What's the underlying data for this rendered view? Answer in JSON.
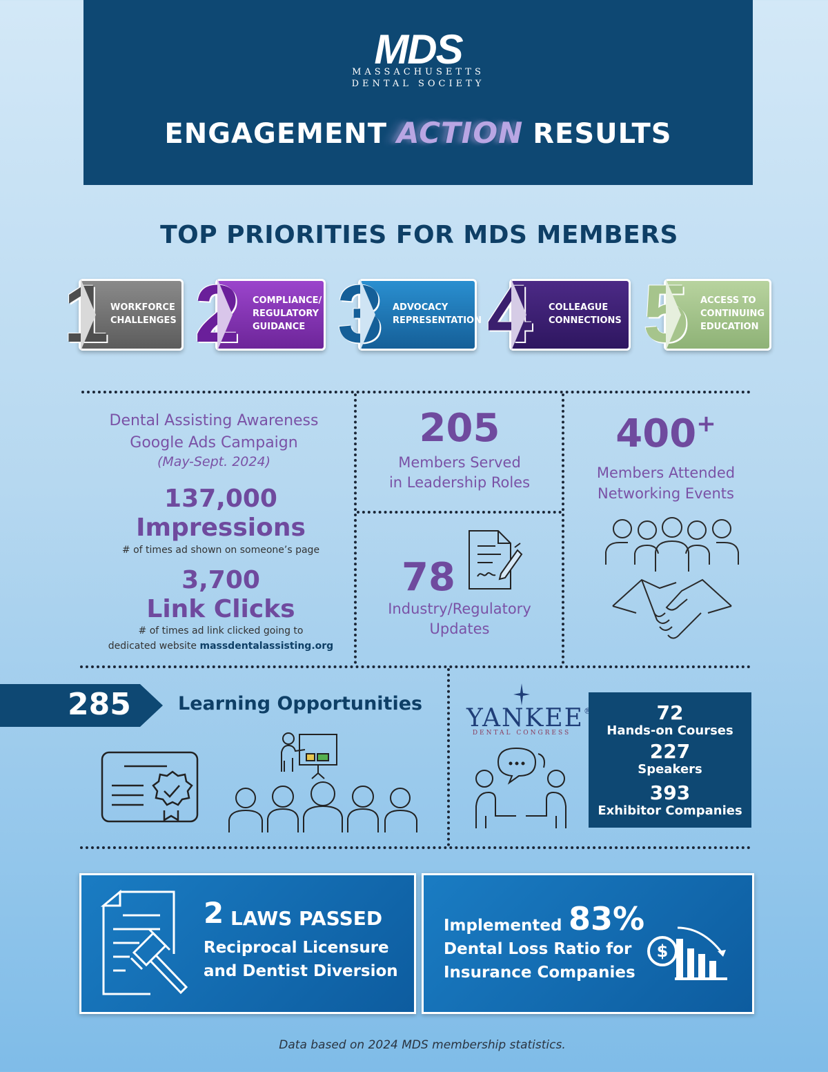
{
  "header": {
    "logo_mark": "MDS",
    "logo_line1": "MASSACHUSETTS",
    "logo_line2": "DENTAL SOCIETY",
    "headline_left": "ENGAGEMENT",
    "headline_mid": "ACTION",
    "headline_right": "RESULTS"
  },
  "priorities": {
    "title": "TOP PRIORITIES FOR MDS MEMBERS",
    "items": [
      {
        "num": "1",
        "lines": [
          "WORKFORCE",
          "CHALLENGES"
        ],
        "color": "#6b6b6b"
      },
      {
        "num": "2",
        "lines": [
          "COMPLIANCE/",
          "REGULATORY",
          "GUIDANCE"
        ],
        "color": "#7a2fae"
      },
      {
        "num": "3",
        "lines": [
          "ADVOCACY",
          "REPRESENTATION"
        ],
        "color": "#1c6ea8"
      },
      {
        "num": "4",
        "lines": [
          "COLLEAGUE",
          "CONNECTIONS"
        ],
        "color": "#3b1f6e"
      },
      {
        "num": "5",
        "lines": [
          "ACCESS TO",
          "CONTINUING",
          "EDUCATION"
        ],
        "color": "#a6c48c"
      }
    ]
  },
  "ads": {
    "title_line1": "Dental Assisting Awareness",
    "title_line2": "Google Ads Campaign",
    "period": "(May-Sept. 2024)",
    "impressions_value": "137,000",
    "impressions_label": "Impressions",
    "impressions_note": "# of times ad shown on someone’s page",
    "clicks_value": "3,700",
    "clicks_label": "Link Clicks",
    "clicks_note1": "# of times ad link clicked going to",
    "clicks_note2_prefix": "dedicated website ",
    "clicks_note2_site": "massdentalassisting.org"
  },
  "leadership": {
    "value": "205",
    "line1": "Members Served",
    "line2": "in Leadership Roles"
  },
  "updates": {
    "value": "78",
    "line1": "Industry/Regulatory",
    "line2": "Updates"
  },
  "networking": {
    "value": "400",
    "suffix": "+",
    "line1": "Members Attended",
    "line2": "Networking Events"
  },
  "learning": {
    "value": "285",
    "label": "Learning Opportunities"
  },
  "yankee": {
    "name": "YANKEE",
    "trademark": "®",
    "sub": "DENTAL CONGRESS",
    "courses_value": "72",
    "courses_label": "Hands-on Courses",
    "speakers_value": "227",
    "speakers_label": "Speakers",
    "exhibitors_value": "393",
    "exhibitors_label": "Exhibitor Companies"
  },
  "laws": {
    "value": "2",
    "title": "LAWS PASSED",
    "line1": "Reciprocal Licensure",
    "line2": "and Dentist Diversion"
  },
  "ratio": {
    "prefix": "Implemented",
    "value": "83%",
    "line1": "Dental Loss Ratio for",
    "line2": "Insurance Companies"
  },
  "footnote": "Data based on 2024 MDS membership statistics."
}
